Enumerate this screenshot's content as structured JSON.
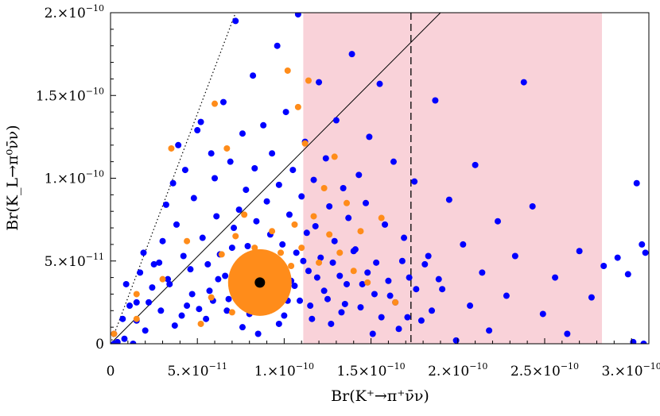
{
  "chart_data": {
    "type": "scatter",
    "title": "",
    "xlabel": "Br(K⁺→π⁺ν̄ν)",
    "ylabel": "Br(K_L→π⁰ν̄ν)",
    "xlim": [
      0,
      3.1e-10
    ],
    "ylim": [
      0,
      2e-10
    ],
    "x_ticks": [
      {
        "value": 0,
        "mant": "0",
        "exp": ""
      },
      {
        "value": 5e-11,
        "mant": "5.×10",
        "exp": "−11"
      },
      {
        "value": 1e-10,
        "mant": "1.×10",
        "exp": "−10"
      },
      {
        "value": 1.5e-10,
        "mant": "1.5×10",
        "exp": "−10"
      },
      {
        "value": 2e-10,
        "mant": "2.×10",
        "exp": "−10"
      },
      {
        "value": 2.5e-10,
        "mant": "2.5×10",
        "exp": "−10"
      },
      {
        "value": 3e-10,
        "mant": "3.×10",
        "exp": "−10"
      }
    ],
    "y_ticks": [
      {
        "value": 0,
        "mant": "0",
        "exp": ""
      },
      {
        "value": 5e-11,
        "mant": "5.×10",
        "exp": "−11"
      },
      {
        "value": 1e-10,
        "mant": "1.×10",
        "exp": "−10"
      },
      {
        "value": 1.5e-10,
        "mant": "1.5×10",
        "exp": "−10"
      },
      {
        "value": 2e-10,
        "mant": "2.×10",
        "exp": "−10"
      }
    ],
    "grid": false,
    "shaded_band": {
      "x_range": [
        1.11e-10,
        2.83e-10
      ],
      "color": "#f9d2d9"
    },
    "vertical_dashed_line": {
      "x": 1.73e-10
    },
    "bound_lines": [
      {
        "style": "solid",
        "points": [
          [
            0,
            0
          ],
          [
            1.9e-10,
            2e-10
          ]
        ]
      },
      {
        "style": "dotted",
        "points": [
          [
            0,
            0
          ],
          [
            7.2e-11,
            2e-10
          ]
        ]
      }
    ],
    "central_point": {
      "x": 8.6e-11,
      "y": 3.7e-11,
      "color": "#000000"
    },
    "series": [
      {
        "color": "#0000ff",
        "points": [
          [
            2e-12,
            0
          ],
          [
            2e-12,
            6e-12
          ],
          [
            4e-12,
            1e-12
          ],
          [
            8e-12,
            3e-12
          ],
          [
            1.3e-11,
            0
          ],
          [
            1.5e-11,
            1.4e-11
          ],
          [
            1.5e-11,
            2.5e-11
          ],
          [
            2.2e-11,
            2.5e-11
          ],
          [
            2.5e-11,
            4.8e-11
          ],
          [
            2.8e-11,
            4.9e-11
          ],
          [
            3e-11,
            6.2e-11
          ],
          [
            3.2e-11,
            8.4e-11
          ],
          [
            3.4e-11,
            3.6e-11
          ],
          [
            3.6e-11,
            9.7e-11
          ],
          [
            3.8e-11,
            7.2e-11
          ],
          [
            3.9e-11,
            1.2e-10
          ],
          [
            4.1e-11,
            1.7e-11
          ],
          [
            4.3e-11,
            1.05e-10
          ],
          [
            4.4e-11,
            2.3e-11
          ],
          [
            4.6e-11,
            4.5e-11
          ],
          [
            4.8e-11,
            8.8e-11
          ],
          [
            5e-11,
            1.29e-10
          ],
          [
            5.2e-11,
            1.34e-10
          ],
          [
            5.3e-11,
            6.4e-11
          ],
          [
            5.5e-11,
            1.5e-11
          ],
          [
            5.7e-11,
            3.2e-11
          ],
          [
            5.8e-11,
            1.15e-10
          ],
          [
            6e-11,
            1e-10
          ],
          [
            6.1e-11,
            7.7e-11
          ],
          [
            6.3e-11,
            5.4e-11
          ],
          [
            6.5e-11,
            1.46e-10
          ],
          [
            6.6e-11,
            4.1e-11
          ],
          [
            6.8e-11,
            2.7e-11
          ],
          [
            6.9e-11,
            1.1e-10
          ],
          [
            7.1e-11,
            7e-11
          ],
          [
            7.2e-11,
            1.95e-10
          ],
          [
            7.4e-11,
            8.1e-11
          ],
          [
            7.5e-11,
            4.6e-11
          ],
          [
            7.6e-11,
            1.27e-10
          ],
          [
            7.8e-11,
            9.3e-11
          ],
          [
            7.9e-11,
            5.9e-11
          ],
          [
            8e-11,
            1.8e-11
          ],
          [
            8.2e-11,
            1.62e-10
          ],
          [
            8.3e-11,
            1.06e-10
          ],
          [
            8.4e-11,
            7.4e-11
          ],
          [
            8.6e-11,
            5e-11
          ],
          [
            8.7e-11,
            3.3e-11
          ],
          [
            8.8e-11,
            1.32e-10
          ],
          [
            9e-11,
            8.6e-11
          ],
          [
            9.1e-11,
            2.8e-11
          ],
          [
            9.2e-11,
            6.6e-11
          ],
          [
            9.3e-11,
            1.15e-10
          ],
          [
            9.5e-11,
            4.3e-11
          ],
          [
            9.6e-11,
            1.8e-10
          ],
          [
            9.7e-11,
            9.6e-11
          ],
          [
            9.9e-11,
            6e-11
          ],
          [
            1e-10,
            1.7e-11
          ],
          [
            1.01e-10,
            1.4e-10
          ],
          [
            1.03e-10,
            7.8e-11
          ],
          [
            1.04e-10,
            3.8e-11
          ],
          [
            1.05e-10,
            1.05e-10
          ],
          [
            1.07e-10,
            5.5e-11
          ],
          [
            1.08e-10,
            1.99e-10
          ],
          [
            1.09e-10,
            2.6e-11
          ],
          [
            1.1e-10,
            8.9e-11
          ],
          [
            1.12e-10,
            1.22e-10
          ],
          [
            1.13e-10,
            6.7e-11
          ],
          [
            1.14e-10,
            4.4e-11
          ],
          [
            1.16e-10,
            1.5e-11
          ],
          [
            1.17e-10,
            9.9e-11
          ],
          [
            1.18e-10,
            7.1e-11
          ],
          [
            1.2e-10,
            1.58e-10
          ],
          [
            1.21e-10,
            5.2e-11
          ],
          [
            1.23e-10,
            3.2e-11
          ],
          [
            1.24e-10,
            1.12e-10
          ],
          [
            1.26e-10,
            8.3e-11
          ],
          [
            1.27e-10,
            1.2e-11
          ],
          [
            1.29e-10,
            6.2e-11
          ],
          [
            1.3e-10,
            1.35e-10
          ],
          [
            1.32e-10,
            4.1e-11
          ],
          [
            1.34e-10,
            9.4e-11
          ],
          [
            1.35e-10,
            2.4e-11
          ],
          [
            1.37e-10,
            7.6e-11
          ],
          [
            1.39e-10,
            1.75e-10
          ],
          [
            1.41e-10,
            5.7e-11
          ],
          [
            1.43e-10,
            1.02e-10
          ],
          [
            1.45e-10,
            3.6e-11
          ],
          [
            1.47e-10,
            8.5e-11
          ],
          [
            1.49e-10,
            1.25e-10
          ],
          [
            1.51e-10,
            6e-12
          ],
          [
            1.53e-10,
            4.9e-11
          ],
          [
            1.55e-10,
            1.57e-10
          ],
          [
            1.58e-10,
            7.2e-11
          ],
          [
            1.61e-10,
            2.9e-11
          ],
          [
            1.63e-10,
            1.1e-10
          ],
          [
            1.66e-10,
            9e-12
          ],
          [
            1.69e-10,
            6.4e-11
          ],
          [
            1.72e-10,
            4e-11
          ],
          [
            1.75e-10,
            9.8e-11
          ],
          [
            1.79e-10,
            1.4e-11
          ],
          [
            1.83e-10,
            5.3e-11
          ],
          [
            1.87e-10,
            1.47e-10
          ],
          [
            1.91e-10,
            3.3e-11
          ],
          [
            1.95e-10,
            8.7e-11
          ],
          [
            1.99e-10,
            2e-12
          ],
          [
            2.03e-10,
            6e-11
          ],
          [
            2.07e-10,
            2.3e-11
          ],
          [
            2.1e-10,
            1.08e-10
          ],
          [
            2.14e-10,
            4.3e-11
          ],
          [
            2.18e-10,
            8e-12
          ],
          [
            2.23e-10,
            7.4e-11
          ],
          [
            2.28e-10,
            2.9e-11
          ],
          [
            2.33e-10,
            5.3e-11
          ],
          [
            2.38e-10,
            1.58e-10
          ],
          [
            2.43e-10,
            8.3e-11
          ],
          [
            2.49e-10,
            1.8e-11
          ],
          [
            2.56e-10,
            4e-11
          ],
          [
            2.63e-10,
            6e-12
          ],
          [
            2.7e-10,
            5.6e-11
          ],
          [
            2.77e-10,
            2.8e-11
          ],
          [
            2.84e-10,
            4.7e-11
          ],
          [
            2.92e-10,
            5.2e-11
          ],
          [
            2.98e-10,
            4.2e-11
          ],
          [
            3.03e-10,
            9.7e-11
          ],
          [
            3.06e-10,
            6e-11
          ],
          [
            3.08e-10,
            5.5e-11
          ],
          [
            3.01e-10,
            1e-12
          ],
          [
            3.07e-10,
            0
          ],
          [
            7.6e-11,
            1e-11
          ],
          [
            8.1e-11,
            4e-11
          ],
          [
            8.9e-11,
            2.1e-11
          ],
          [
            9.4e-11,
            3.1e-11
          ],
          [
            7.3e-11,
            3.6e-11
          ],
          [
            9.8e-11,
            4.7e-11
          ],
          [
            1.02e-10,
            2.6e-11
          ],
          [
            6.7e-11,
            2e-11
          ],
          [
            8.5e-11,
            6e-12
          ],
          [
            1.06e-10,
            3.5e-11
          ],
          [
            1.11e-10,
            5e-11
          ],
          [
            7e-11,
            5.8e-11
          ],
          [
            9.7e-11,
            1.2e-11
          ],
          [
            1.15e-10,
            2.3e-11
          ],
          [
            6.2e-11,
            3.9e-11
          ],
          [
            1.19e-10,
            4e-11
          ],
          [
            5.9e-11,
            2.6e-11
          ],
          [
            1.25e-10,
            2.7e-11
          ],
          [
            1.28e-10,
            4.9e-11
          ],
          [
            5.6e-11,
            4.8e-11
          ],
          [
            1.33e-10,
            1.9e-11
          ],
          [
            1.36e-10,
            3.6e-11
          ],
          [
            5.1e-11,
            2.1e-11
          ],
          [
            1.4e-10,
            5.6e-11
          ],
          [
            4.7e-11,
            3e-11
          ],
          [
            1.44e-10,
            2.2e-11
          ],
          [
            4.2e-11,
            5.3e-11
          ],
          [
            1.48e-10,
            4.3e-11
          ],
          [
            3.7e-11,
            1.1e-11
          ],
          [
            1.52e-10,
            3e-11
          ],
          [
            3.3e-11,
            3.9e-11
          ],
          [
            1.56e-10,
            1.6e-11
          ],
          [
            2.9e-11,
            2e-11
          ],
          [
            1.6e-10,
            3.8e-11
          ],
          [
            2.4e-11,
            3.4e-11
          ],
          [
            1.64e-10,
            2.5e-11
          ],
          [
            2e-11,
            8e-12
          ],
          [
            1.68e-10,
            5e-11
          ],
          [
            1.7e-11,
            4.3e-11
          ],
          [
            1.71e-10,
            1.6e-11
          ],
          [
            1.1e-11,
            2.3e-11
          ],
          [
            1.76e-10,
            3.3e-11
          ],
          [
            7e-12,
            1.5e-11
          ],
          [
            1.81e-10,
            4.8e-11
          ],
          [
            9e-12,
            3.6e-11
          ],
          [
            1.85e-10,
            2e-11
          ],
          [
            1.9e-11,
            5.5e-11
          ],
          [
            1.89e-10,
            3.9e-11
          ]
        ]
      },
      {
        "color": "#ff8c1a",
        "points": [
          [
            2e-12,
            6e-12
          ],
          [
            1.5e-11,
            1.5e-11
          ],
          [
            1.5e-11,
            3e-11
          ],
          [
            3e-11,
            3.9e-11
          ],
          [
            3.5e-11,
            1.18e-10
          ],
          [
            4.4e-11,
            6.2e-11
          ],
          [
            5.2e-11,
            1.2e-11
          ],
          [
            5.8e-11,
            2.8e-11
          ],
          [
            6e-11,
            1.45e-10
          ],
          [
            6.4e-11,
            5.4e-11
          ],
          [
            6.7e-11,
            1.18e-10
          ],
          [
            7e-11,
            1.9e-11
          ],
          [
            7.2e-11,
            6.5e-11
          ],
          [
            7.4e-11,
            3.7e-11
          ],
          [
            7.7e-11,
            7.8e-11
          ],
          [
            7.9e-11,
            4.9e-11
          ],
          [
            8.1e-11,
            2.7e-11
          ],
          [
            8.3e-11,
            5.8e-11
          ],
          [
            8.4e-11,
            3.4e-11
          ],
          [
            8.6e-11,
            4.5e-11
          ],
          [
            8.8e-11,
            2.2e-11
          ],
          [
            8.9e-11,
            5.2e-11
          ],
          [
            9.1e-11,
            3.1e-11
          ],
          [
            9.3e-11,
            6.8e-11
          ],
          [
            9.4e-11,
            4e-11
          ],
          [
            9.6e-11,
            2.5e-11
          ],
          [
            9.8e-11,
            5.5e-11
          ],
          [
            1e-10,
            3.6e-11
          ],
          [
            1.02e-10,
            1.65e-10
          ],
          [
            1.04e-10,
            4.7e-11
          ],
          [
            1.06e-10,
            7.2e-11
          ],
          [
            1.08e-10,
            1.43e-10
          ],
          [
            1.1e-10,
            5.8e-11
          ],
          [
            1.12e-10,
            1.21e-10
          ],
          [
            1.14e-10,
            1.59e-10
          ],
          [
            1.17e-10,
            7.7e-11
          ],
          [
            1.2e-10,
            4.9e-11
          ],
          [
            1.23e-10,
            9.4e-11
          ],
          [
            1.26e-10,
            6.6e-11
          ],
          [
            1.29e-10,
            1.13e-10
          ],
          [
            1.32e-10,
            5.5e-11
          ],
          [
            1.36e-10,
            8.5e-11
          ],
          [
            1.4e-10,
            4.4e-11
          ],
          [
            1.44e-10,
            6.8e-11
          ],
          [
            1.48e-10,
            3.7e-11
          ],
          [
            1.52e-10,
            2.05e-10
          ],
          [
            1.56e-10,
            7.6e-11
          ],
          [
            1.64e-10,
            2.5e-11
          ],
          [
            7.5e-11,
            3e-11
          ],
          [
            8e-11,
            4.1e-11
          ],
          [
            8.5e-11,
            3.8e-11
          ],
          [
            9e-11,
            4.4e-11
          ],
          [
            9.5e-11,
            3.3e-11
          ],
          [
            8.2e-11,
            2.2e-11
          ],
          [
            8.7e-11,
            5e-11
          ],
          [
            9.2e-11,
            2.6e-11
          ],
          [
            7.8e-11,
            4.6e-11
          ],
          [
            9.7e-11,
            4.2e-11
          ],
          [
            8.4e-11,
            2.9e-11
          ],
          [
            8.9e-11,
            3.5e-11
          ],
          [
            7.6e-11,
            3.9e-11
          ],
          [
            9.9e-11,
            3e-11
          ],
          [
            8.1e-11,
            5.3e-11
          ],
          [
            9.3e-11,
            4.8e-11
          ]
        ]
      }
    ]
  }
}
